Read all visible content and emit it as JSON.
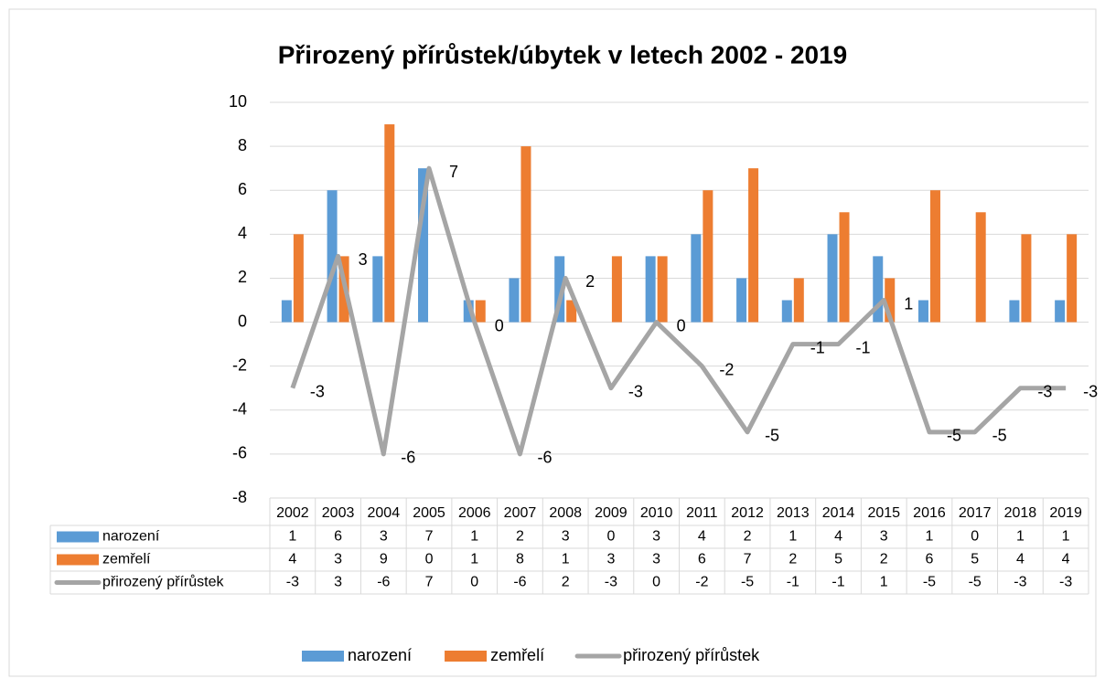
{
  "chart_data": {
    "type": "bar",
    "title": "Přirozený přírůstek/úbytek v letech 2002 - 2019",
    "categories": [
      "2002",
      "2003",
      "2004",
      "2005",
      "2006",
      "2007",
      "2008",
      "2009",
      "2010",
      "2011",
      "2012",
      "2013",
      "2014",
      "2015",
      "2016",
      "2017",
      "2018",
      "2019"
    ],
    "series": [
      {
        "name": "narození",
        "type": "bar",
        "color": "#5b9bd5",
        "values": [
          1,
          6,
          3,
          7,
          1,
          2,
          3,
          0,
          3,
          4,
          2,
          1,
          4,
          3,
          1,
          0,
          1,
          1
        ]
      },
      {
        "name": "zemřelí",
        "type": "bar",
        "color": "#ed7d31",
        "values": [
          4,
          3,
          9,
          0,
          1,
          8,
          1,
          3,
          3,
          6,
          7,
          2,
          5,
          2,
          6,
          5,
          4,
          4
        ]
      },
      {
        "name": "přirozený přírůstek",
        "type": "line",
        "color": "#a5a5a5",
        "values": [
          -3,
          3,
          -6,
          7,
          0,
          -6,
          2,
          -3,
          0,
          -2,
          -5,
          -1,
          -1,
          1,
          -5,
          -5,
          -3,
          -3
        ],
        "data_labels": true
      }
    ],
    "ylim": [
      -8,
      10
    ],
    "yticks": [
      -8,
      -6,
      -4,
      -2,
      0,
      2,
      4,
      6,
      8,
      10
    ],
    "grid": true,
    "data_table": true,
    "legend": "bottom"
  }
}
